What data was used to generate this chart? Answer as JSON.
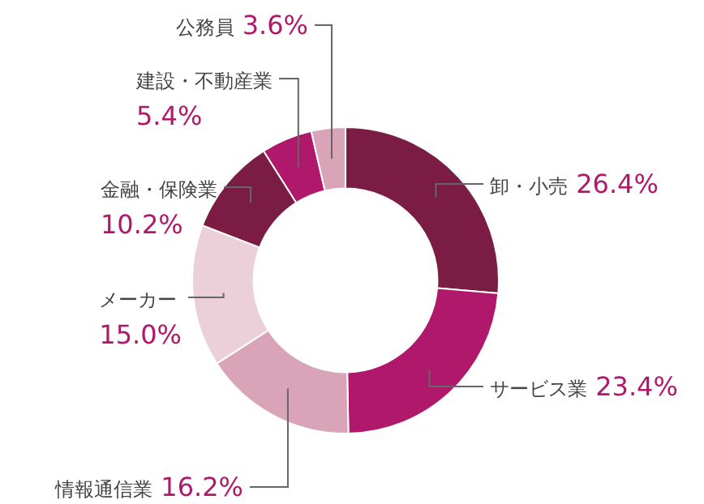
{
  "chart_data": {
    "type": "donut",
    "categories": [
      "卸・小売",
      "サービス業",
      "情報通信業",
      "メーカー",
      "金融・保険業",
      "建設・不動産業",
      "公務員"
    ],
    "values": [
      26.4,
      23.4,
      16.2,
      15.0,
      10.2,
      5.4,
      3.6
    ],
    "colors": [
      "#7b1c45",
      "#b0196b",
      "#d9a4b7",
      "#ebd0da",
      "#7b1c45",
      "#b0196b",
      "#d9a4b7"
    ],
    "value_labels": [
      "26.4%",
      "23.4%",
      "16.2%",
      "15.0%",
      "10.2%",
      "5.4%",
      "3.6%"
    ]
  }
}
